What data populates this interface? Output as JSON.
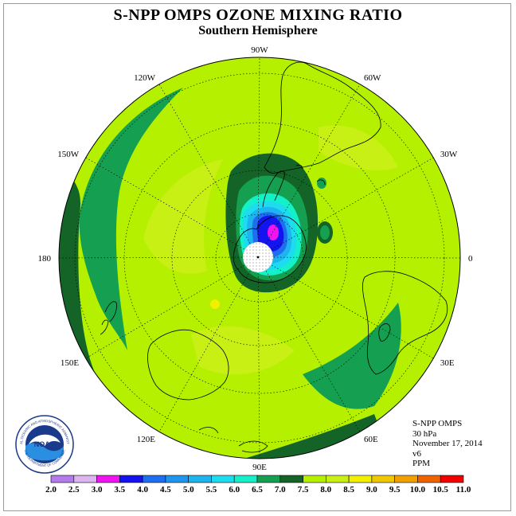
{
  "title": "S-NPP OMPS OZONE MIXING RATIO",
  "subtitle": "Southern Hemisphere",
  "longitude_labels": [
    {
      "text": "90W",
      "angle": -90
    },
    {
      "text": "60W",
      "angle": -60
    },
    {
      "text": "30W",
      "angle": -30
    },
    {
      "text": "0",
      "angle": 0
    },
    {
      "text": "30E",
      "angle": 30
    },
    {
      "text": "60E",
      "angle": 60
    },
    {
      "text": "90E",
      "angle": 90
    },
    {
      "text": "120E",
      "angle": 120
    },
    {
      "text": "150E",
      "angle": 150
    },
    {
      "text": "180",
      "angle": 180
    },
    {
      "text": "150W",
      "angle": 210
    },
    {
      "text": "120W",
      "angle": 240
    }
  ],
  "info": {
    "instrument": "S-NPP OMPS",
    "level": "30 hPa",
    "date": "November 17, 2014",
    "version": "v6",
    "units": "PPM"
  },
  "logo": {
    "text": "NOAA",
    "ring_top": "NATIONAL OCEANIC AND ATMOSPHERIC ADMINISTRATION",
    "ring_bottom": "U.S. DEPARTMENT OF COMMERCE"
  },
  "colorbar": {
    "labels": [
      "2.0",
      "2.5",
      "3.0",
      "3.5",
      "4.0",
      "4.5",
      "5.0",
      "5.5",
      "6.0",
      "6.5",
      "7.0",
      "7.5",
      "8.0",
      "8.5",
      "9.0",
      "9.5",
      "10.0",
      "10.5",
      "11.0"
    ],
    "colors": [
      "#b57bec",
      "#dcb4f0",
      "#f014f0",
      "#1414f0",
      "#1e6ef0",
      "#1e96f0",
      "#1eb4f0",
      "#1edcf0",
      "#14f0c8",
      "#14a050",
      "#146428",
      "#b4f000",
      "#c8f014",
      "#f0f000",
      "#f0c800",
      "#f0a000",
      "#f06400",
      "#f00000",
      "#a05a3c"
    ]
  },
  "field_colors": {
    "dark_green": "#146428",
    "mid_green": "#14a050",
    "lime": "#b4f000",
    "yellow_green": "#c8f014",
    "yellow": "#f0f000"
  }
}
